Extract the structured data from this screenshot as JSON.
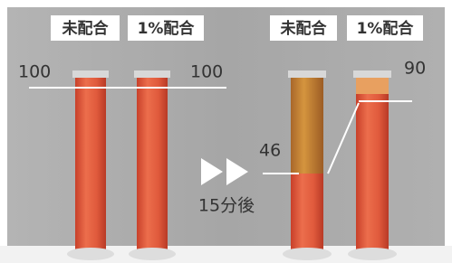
{
  "panels": [
    {
      "labels": [
        "未配合",
        "1%配合"
      ],
      "levels": [
        100,
        100
      ]
    },
    {
      "labels": [
        "未配合",
        "1%配合"
      ],
      "levels": [
        46,
        90
      ]
    }
  ],
  "arrow_label": "15分後"
}
